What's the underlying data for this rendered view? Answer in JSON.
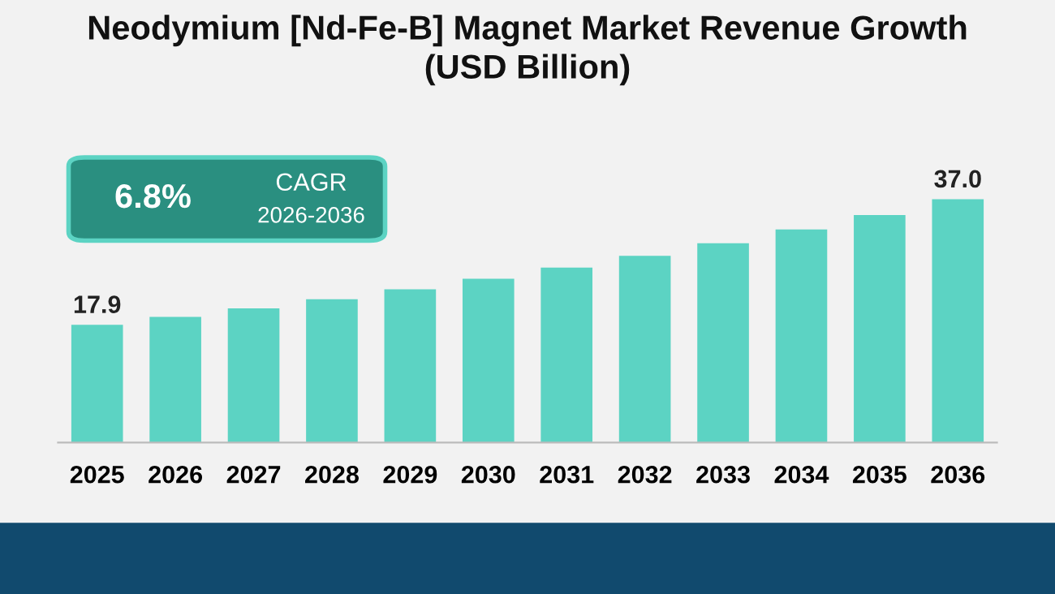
{
  "chart_data": {
    "type": "bar",
    "title": "Neodymium [Nd-Fe-B] Magnet Market Revenue Growth\n(USD Billion)",
    "categories": [
      "2025",
      "2026",
      "2027",
      "2028",
      "2029",
      "2030",
      "2031",
      "2032",
      "2033",
      "2034",
      "2035",
      "2036"
    ],
    "values": [
      17.9,
      19.1,
      20.4,
      21.8,
      23.3,
      24.9,
      26.6,
      28.4,
      30.3,
      32.4,
      34.6,
      37.0
    ],
    "value_labels": [
      "17.9",
      null,
      null,
      null,
      null,
      null,
      null,
      null,
      null,
      null,
      null,
      "37.0"
    ],
    "color": "#5cd3c3",
    "annotations": [
      "6.8%",
      "CAGR",
      "2026-2036"
    ],
    "grid": false
  }
}
